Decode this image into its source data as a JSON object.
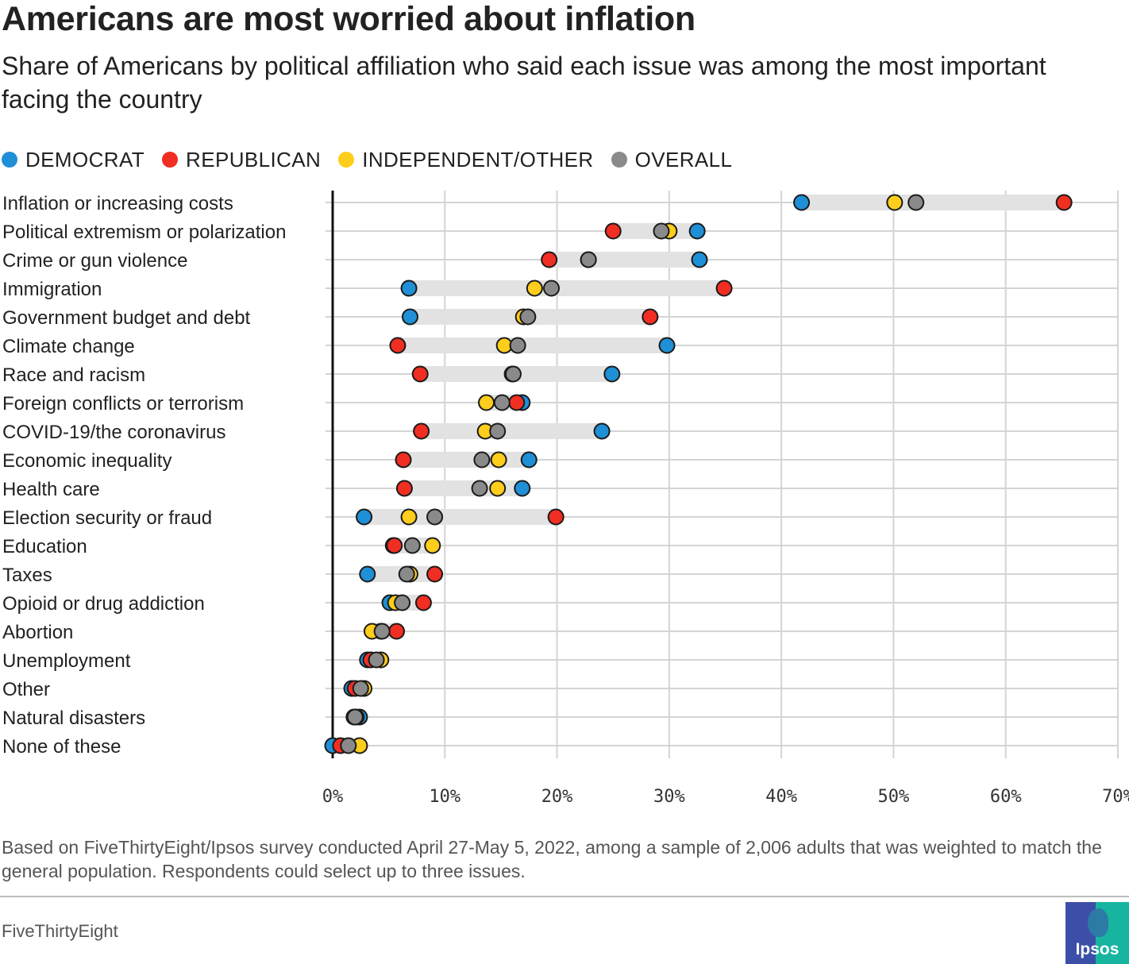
{
  "title": "Americans are most worried about inflation",
  "subtitle": "Share of Americans by political affiliation who said each issue was among the most important facing the country",
  "legend": [
    {
      "key": "dem",
      "label": "DEMOCRAT",
      "color": "#1f8fd6"
    },
    {
      "key": "rep",
      "label": "REPUBLICAN",
      "color": "#f02e22"
    },
    {
      "key": "ind",
      "label": "INDEPENDENT/OTHER",
      "color": "#ffcd1c"
    },
    {
      "key": "all",
      "label": "OVERALL",
      "color": "#8a8a8a"
    }
  ],
  "note": "Based on FiveThirtyEight/Ipsos survey conducted April 27-May 5, 2022, among a sample of 2,006 adults that was weighted to match the general population. Respondents could select up to three issues.",
  "brand": "FiveThirtyEight",
  "logo_text": "Ipsos",
  "chart_data": {
    "type": "dot",
    "xlim": [
      0,
      70
    ],
    "x_ticks": [
      {
        "value": 0,
        "label": "0%"
      },
      {
        "value": 10,
        "label": "10%"
      },
      {
        "value": 20,
        "label": "20%"
      },
      {
        "value": 30,
        "label": "30%"
      },
      {
        "value": 40,
        "label": "40%"
      },
      {
        "value": 50,
        "label": "50%"
      },
      {
        "value": 60,
        "label": "60%"
      },
      {
        "value": 70,
        "label": "70%"
      }
    ],
    "categories": [
      {
        "label": "Inflation or increasing costs",
        "dem": 41.8,
        "rep": 65.2,
        "ind": 50.1,
        "all": 52.0
      },
      {
        "label": "Political extremism or polarization",
        "dem": 32.5,
        "rep": 25.0,
        "ind": 30.0,
        "all": 29.3
      },
      {
        "label": "Crime or gun violence",
        "dem": 32.7,
        "rep": 19.3,
        "ind": 22.8,
        "all": 22.8
      },
      {
        "label": "Immigration",
        "dem": 6.8,
        "rep": 34.9,
        "ind": 18.0,
        "all": 19.5
      },
      {
        "label": "Government budget and debt",
        "dem": 6.9,
        "rep": 28.3,
        "ind": 17.0,
        "all": 17.4
      },
      {
        "label": "Climate change",
        "dem": 29.8,
        "rep": 5.8,
        "ind": 15.3,
        "all": 16.5
      },
      {
        "label": "Race and racism",
        "dem": 24.9,
        "rep": 7.8,
        "ind": 16.0,
        "all": 16.1
      },
      {
        "label": "Foreign conflicts or terrorism",
        "dem": 16.9,
        "rep": 16.4,
        "ind": 13.7,
        "all": 15.1
      },
      {
        "label": "COVID-19/the coronavirus",
        "dem": 24.0,
        "rep": 7.9,
        "ind": 13.6,
        "all": 14.7
      },
      {
        "label": "Economic inequality",
        "dem": 17.5,
        "rep": 6.3,
        "ind": 14.8,
        "all": 13.3
      },
      {
        "label": "Health care",
        "dem": 16.9,
        "rep": 6.4,
        "ind": 14.7,
        "all": 13.1
      },
      {
        "label": "Election security or fraud",
        "dem": 2.8,
        "rep": 19.9,
        "ind": 6.8,
        "all": 9.1
      },
      {
        "label": "Education",
        "dem": 5.4,
        "rep": 5.5,
        "ind": 8.9,
        "all": 7.1
      },
      {
        "label": "Taxes",
        "dem": 3.1,
        "rep": 9.1,
        "ind": 6.9,
        "all": 6.6
      },
      {
        "label": "Opioid or drug addiction",
        "dem": 5.1,
        "rep": 8.1,
        "ind": 5.6,
        "all": 6.2
      },
      {
        "label": "Abortion",
        "dem": 4.3,
        "rep": 5.7,
        "ind": 3.5,
        "all": 4.4
      },
      {
        "label": "Unemployment",
        "dem": 3.1,
        "rep": 3.4,
        "ind": 4.3,
        "all": 3.9
      },
      {
        "label": "Other",
        "dem": 1.7,
        "rep": 2.0,
        "ind": 2.8,
        "all": 2.5
      },
      {
        "label": "Natural disasters",
        "dem": 2.4,
        "rep": 1.9,
        "ind": 2.1,
        "all": 2.0
      },
      {
        "label": "None of these",
        "dem": 0.0,
        "rep": 0.7,
        "ind": 2.4,
        "all": 1.4
      }
    ]
  }
}
